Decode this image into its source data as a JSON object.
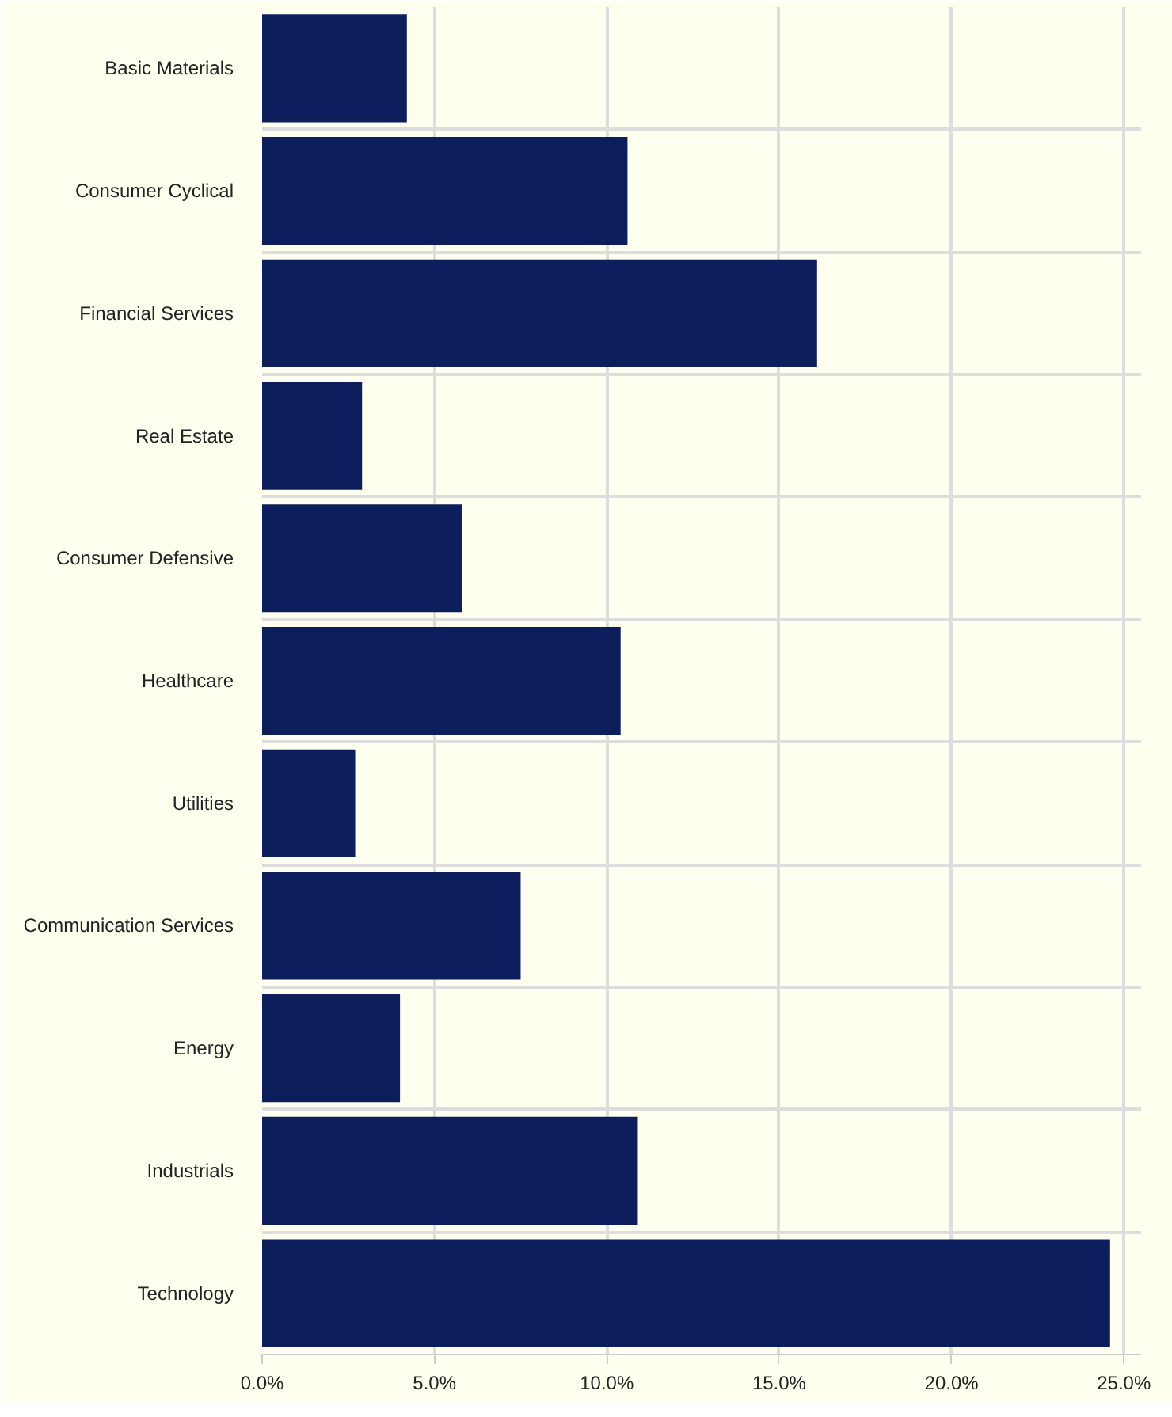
{
  "chart_data": {
    "type": "bar",
    "orientation": "horizontal",
    "categories": [
      "Basic Materials",
      "Consumer Cyclical",
      "Financial Services",
      "Real Estate",
      "Consumer Defensive",
      "Healthcare",
      "Utilities",
      "Communication Services",
      "Energy",
      "Industrials",
      "Technology"
    ],
    "values": [
      4.2,
      10.6,
      16.1,
      2.9,
      5.8,
      10.4,
      2.7,
      7.5,
      4.0,
      10.9,
      24.6
    ],
    "color": "#0c1f5c",
    "xlim": [
      0,
      25.5
    ],
    "xticks": [
      {
        "value": 0,
        "label": "0.0%"
      },
      {
        "value": 5,
        "label": "5.0%"
      },
      {
        "value": 10,
        "label": "10.0%"
      },
      {
        "value": 15,
        "label": "15.0%"
      },
      {
        "value": 20,
        "label": "20.0%"
      },
      {
        "value": 25,
        "label": "25.0%"
      }
    ],
    "grid": true
  }
}
